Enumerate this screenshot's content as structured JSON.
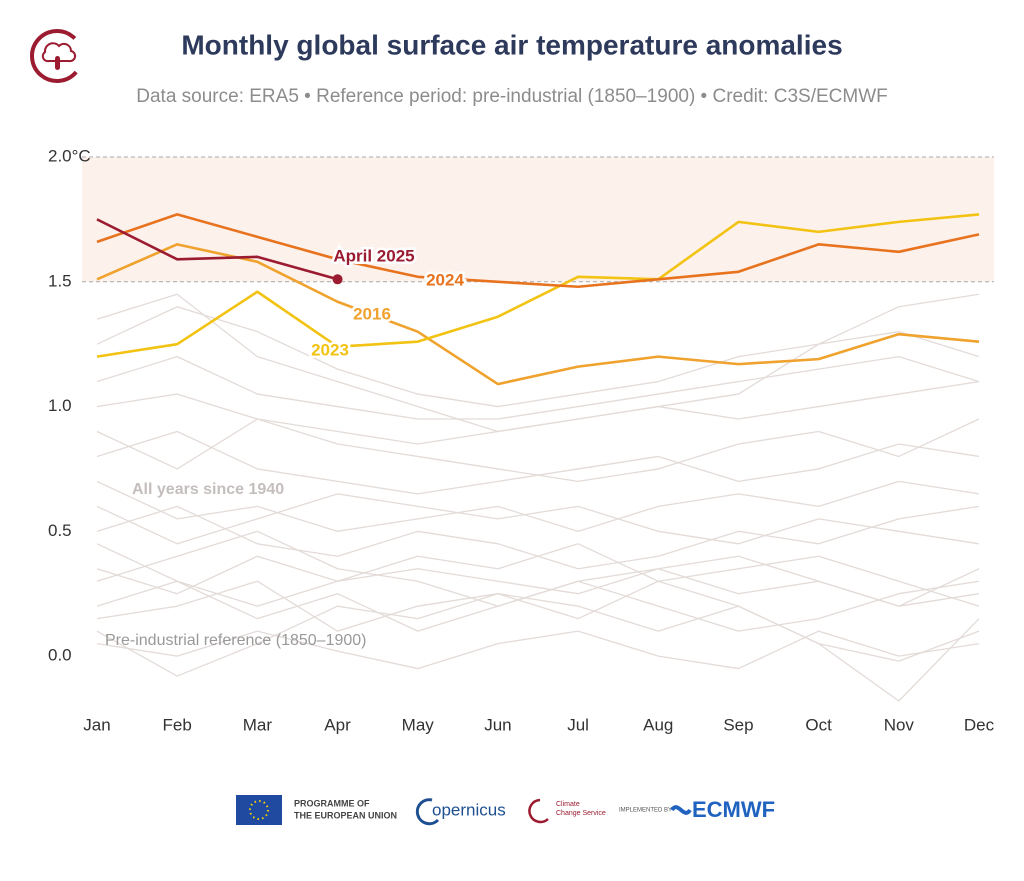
{
  "chart_data": {
    "type": "line",
    "title": "Monthly global surface air temperature anomalies",
    "subtitle": "Data source: ERA5 • Reference period: pre-industrial (1850–1900) • Credit: C3S/ECMWF",
    "categories": [
      "Jan",
      "Feb",
      "Mar",
      "Apr",
      "May",
      "Jun",
      "Jul",
      "Aug",
      "Sep",
      "Oct",
      "Nov",
      "Dec"
    ],
    "ylim": [
      -0.2,
      2.0
    ],
    "yticks": [
      {
        "value": 2.0,
        "label": "2.0°C"
      },
      1.5,
      {
        "value": 1.0,
        "label": "1.0"
      },
      0.5,
      {
        "value": 0.0,
        "label": "0.0"
      }
    ],
    "highlight_band": [
      1.5,
      2.0
    ],
    "background": {
      "label": "All years since 1940",
      "color": "#e3dbd8",
      "series": [
        {
          "values": [
            0.05,
            0.0,
            0.1,
            0.02,
            -0.05,
            0.05,
            0.1,
            0.0,
            -0.05,
            0.1,
            0.0,
            0.05
          ]
        },
        {
          "values": [
            0.2,
            0.3,
            0.15,
            0.25,
            0.1,
            0.2,
            0.3,
            0.2,
            0.1,
            0.15,
            0.25,
            0.3
          ]
        },
        {
          "values": [
            0.35,
            0.25,
            0.4,
            0.3,
            0.35,
            0.3,
            0.25,
            0.35,
            0.4,
            0.3,
            0.2,
            0.25
          ]
        },
        {
          "values": [
            0.1,
            -0.08,
            0.05,
            0.2,
            0.15,
            0.25,
            0.2,
            0.1,
            0.2,
            0.05,
            -0.02,
            0.1
          ]
        },
        {
          "values": [
            0.5,
            0.6,
            0.45,
            0.4,
            0.5,
            0.45,
            0.35,
            0.4,
            0.5,
            0.45,
            0.55,
            0.6
          ]
        },
        {
          "values": [
            0.6,
            0.45,
            0.55,
            0.65,
            0.6,
            0.55,
            0.6,
            0.5,
            0.45,
            0.55,
            0.5,
            0.45
          ]
        },
        {
          "values": [
            0.8,
            0.9,
            0.75,
            0.7,
            0.65,
            0.7,
            0.75,
            0.8,
            0.7,
            0.75,
            0.85,
            0.8
          ]
        },
        {
          "values": [
            0.9,
            0.75,
            0.95,
            0.85,
            0.8,
            0.75,
            0.7,
            0.75,
            0.85,
            0.9,
            0.8,
            0.95
          ]
        },
        {
          "values": [
            1.0,
            1.05,
            0.95,
            0.9,
            0.85,
            0.9,
            0.95,
            1.0,
            0.95,
            1.0,
            1.05,
            1.1
          ]
        },
        {
          "values": [
            1.1,
            1.2,
            1.05,
            1.0,
            0.95,
            0.95,
            1.0,
            1.05,
            1.1,
            1.15,
            1.2,
            1.1
          ]
        },
        {
          "values": [
            1.25,
            1.4,
            1.3,
            1.15,
            1.05,
            1.0,
            1.05,
            1.1,
            1.2,
            1.25,
            1.4,
            1.45
          ]
        },
        {
          "values": [
            1.35,
            1.45,
            1.2,
            1.1,
            1.0,
            0.9,
            0.95,
            1.0,
            1.05,
            1.25,
            1.3,
            1.2
          ]
        },
        {
          "values": [
            0.3,
            0.4,
            0.5,
            0.35,
            0.3,
            0.2,
            0.3,
            0.35,
            0.25,
            0.3,
            0.2,
            0.35
          ]
        },
        {
          "values": [
            0.7,
            0.55,
            0.6,
            0.5,
            0.55,
            0.6,
            0.5,
            0.6,
            0.65,
            0.6,
            0.7,
            0.65
          ]
        },
        {
          "values": [
            0.15,
            0.2,
            0.3,
            0.1,
            0.2,
            0.25,
            0.15,
            0.3,
            0.2,
            0.05,
            -0.18,
            0.15
          ]
        },
        {
          "values": [
            0.45,
            0.3,
            0.2,
            0.3,
            0.4,
            0.35,
            0.45,
            0.3,
            0.35,
            0.4,
            0.3,
            0.2
          ]
        }
      ]
    },
    "series": [
      {
        "name": "2016",
        "color": "#f0a22e",
        "values": [
          1.51,
          1.65,
          1.58,
          1.42,
          1.3,
          1.09,
          1.16,
          1.2,
          1.17,
          1.19,
          1.29,
          1.26
        ]
      },
      {
        "name": "2023",
        "color": "#f2c313",
        "values": [
          1.2,
          1.25,
          1.46,
          1.24,
          1.26,
          1.36,
          1.52,
          1.51,
          1.74,
          1.7,
          1.74,
          1.77
        ]
      },
      {
        "name": "2024",
        "color": "#e8731f",
        "values": [
          1.66,
          1.77,
          1.68,
          1.59,
          1.52,
          1.5,
          1.48,
          1.51,
          1.54,
          1.65,
          1.62,
          1.69
        ]
      },
      {
        "name": "April 2025",
        "color": "#9b1b30",
        "values": [
          1.75,
          1.59,
          1.6,
          1.51,
          null,
          null,
          null,
          null,
          null,
          null,
          null,
          null
        ]
      }
    ],
    "annotations": [
      "Pre-industrial reference (1850–1900)"
    ]
  },
  "footer": {
    "eu": [
      "PROGRAMME OF",
      "THE EUROPEAN UNION"
    ],
    "copernicus": "opernicus",
    "ccs": [
      "Climate",
      "Change Service"
    ],
    "implemented": "IMPLEMENTED BY",
    "ecmwf": "ECMWF"
  }
}
